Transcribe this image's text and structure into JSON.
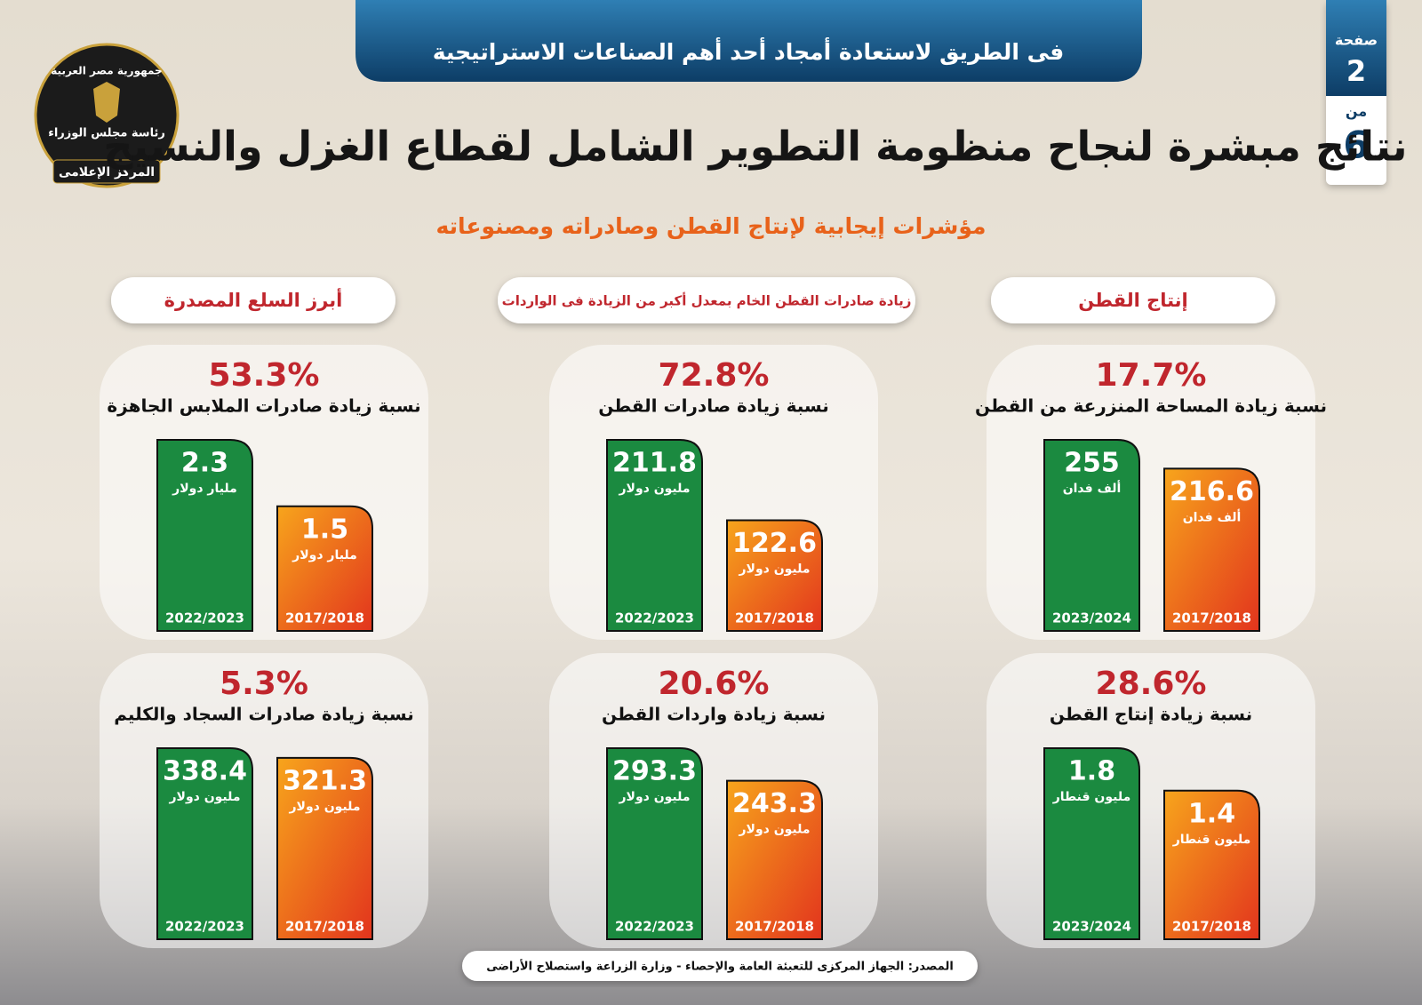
{
  "header": {
    "banner": "فى الطريق لاستعادة أمجاد أحد أهم الصناعات الاستراتيجية",
    "title": "نتائج مبشرة لنجاح منظومة التطوير الشامل لقطاع الغزل والنسيج",
    "subtitle": "مؤشرات إيجابية لإنتاج القطن وصادراته ومصنوعاته",
    "page_label": "صفحة",
    "page_number": 2,
    "of_label": "من",
    "page_total": 6,
    "logo": [
      "جمهورية مصر العربية",
      "رئاسة مجلس الوزراء",
      "المركز الإعلامى"
    ]
  },
  "sections": [
    "إنتاج القطن",
    "زيادة صادرات القطن الخام بمعدل أكبر من الزيادة فى الواردات",
    "أبرز السلع المصدرة"
  ],
  "chart_data": [
    {
      "type": "bar",
      "title": "17.7%",
      "subtitle": "نسبة زيادة المساحة المنزرعة من القطن",
      "categories": [
        "2023/2024",
        "2017/2018"
      ],
      "values": [
        255,
        216.6
      ],
      "unit": "ألف فدان",
      "colors": [
        "#1b8a40",
        "#f7a51c"
      ]
    },
    {
      "type": "bar",
      "title": "28.6%",
      "subtitle": "نسبة زيادة إنتاج القطن",
      "categories": [
        "2023/2024",
        "2017/2018"
      ],
      "values": [
        1.8,
        1.4
      ],
      "unit": "مليون قنطار",
      "colors": [
        "#1b8a40",
        "#f7a51c"
      ]
    },
    {
      "type": "bar",
      "title": "72.8%",
      "subtitle": "نسبة زيادة صادرات القطن",
      "categories": [
        "2022/2023",
        "2017/2018"
      ],
      "values": [
        211.8,
        122.6
      ],
      "unit": "مليون دولار",
      "colors": [
        "#1b8a40",
        "#f7a51c"
      ]
    },
    {
      "type": "bar",
      "title": "20.6%",
      "subtitle": "نسبة زيادة واردات القطن",
      "categories": [
        "2022/2023",
        "2017/2018"
      ],
      "values": [
        293.3,
        243.3
      ],
      "unit": "مليون دولار",
      "colors": [
        "#1b8a40",
        "#f7a51c"
      ]
    },
    {
      "type": "bar",
      "title": "53.3%",
      "subtitle": "نسبة زيادة صادرات الملابس الجاهزة",
      "categories": [
        "2022/2023",
        "2017/2018"
      ],
      "values": [
        2.3,
        1.5
      ],
      "unit": "مليار دولار",
      "colors": [
        "#1b8a40",
        "#f7a51c"
      ]
    },
    {
      "type": "bar",
      "title": "5.3%",
      "subtitle": "نسبة زيادة صادرات السجاد والكليم",
      "categories": [
        "2022/2023",
        "2017/2018"
      ],
      "values": [
        338.4,
        321.3
      ],
      "unit": "مليون دولار",
      "colors": [
        "#1b8a40",
        "#f7a51c"
      ]
    }
  ],
  "source": "المصدر: الجهاز المركزى للتعبئة العامة والإحصاء - وزارة الزراعة واستصلاح الأراضى"
}
